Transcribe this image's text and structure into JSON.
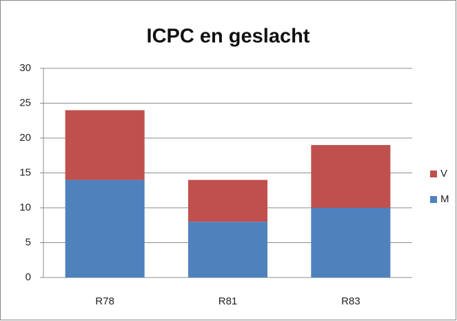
{
  "chart_data": {
    "type": "bar",
    "stacked": true,
    "title": "ICPC en geslacht",
    "categories": [
      "R78",
      "R81",
      "R83"
    ],
    "series": [
      {
        "name": "M",
        "color": "#4f81bd",
        "values": [
          14,
          8,
          10
        ]
      },
      {
        "name": "V",
        "color": "#c0504d",
        "values": [
          10,
          6,
          9
        ]
      }
    ],
    "ylim": [
      0,
      30
    ],
    "yticks": [
      0,
      5,
      10,
      15,
      20,
      25,
      30
    ],
    "grid": true,
    "legend": "right"
  }
}
